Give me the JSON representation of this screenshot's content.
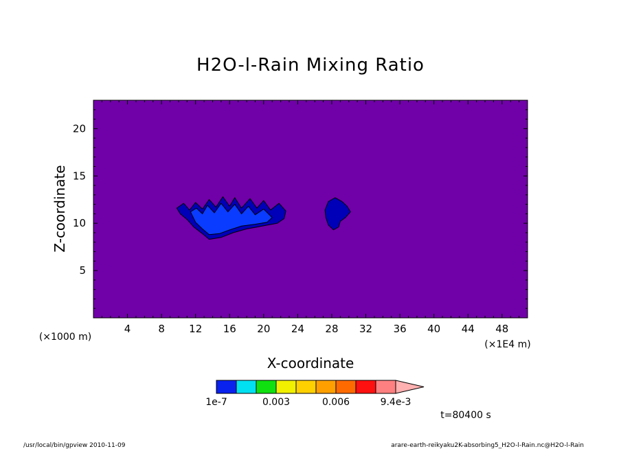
{
  "chart_data": {
    "type": "heatmap",
    "title": "H2O-l-Rain Mixing Ratio",
    "xlabel": "X-coordinate",
    "ylabel": "Z-coordinate",
    "x_unit_left": "(×1000 m)",
    "x_unit_right": "(×1E4 m)",
    "xlim": [
      0,
      51
    ],
    "ylim": [
      0,
      23
    ],
    "xticks": [
      4,
      8,
      12,
      16,
      20,
      24,
      28,
      32,
      36,
      40,
      44,
      48
    ],
    "yticks": [
      5,
      10,
      15,
      20
    ],
    "background_color": "#7000a8",
    "colorbar": {
      "colors": [
        "#0a22ee",
        "#00e0f0",
        "#10e010",
        "#f0f000",
        "#ffd000",
        "#ffa000",
        "#ff6a00",
        "#ff1010",
        "#ff8080",
        "#ffb0b0"
      ],
      "labels": [
        "1e-7",
        "0.003",
        "0.006",
        "9.4e-3"
      ],
      "label_positions": [
        0,
        3,
        6,
        9
      ]
    },
    "regions": [
      {
        "level": "low",
        "fill": "#0000b8",
        "points": [
          [
            9.8,
            11.6
          ],
          [
            10.6,
            12.1
          ],
          [
            11.3,
            11.4
          ],
          [
            12.0,
            12.2
          ],
          [
            12.8,
            11.5
          ],
          [
            13.6,
            12.5
          ],
          [
            14.4,
            11.7
          ],
          [
            15.2,
            12.8
          ],
          [
            16.0,
            11.8
          ],
          [
            16.6,
            12.7
          ],
          [
            17.4,
            11.6
          ],
          [
            18.4,
            12.6
          ],
          [
            19.2,
            11.6
          ],
          [
            20.0,
            12.4
          ],
          [
            20.8,
            11.4
          ],
          [
            21.8,
            12.1
          ],
          [
            22.6,
            11.3
          ],
          [
            22.4,
            10.5
          ],
          [
            21.6,
            10.0
          ],
          [
            20.4,
            9.8
          ],
          [
            19.2,
            9.6
          ],
          [
            18.0,
            9.4
          ],
          [
            16.4,
            9.0
          ],
          [
            15.0,
            8.5
          ],
          [
            13.6,
            8.3
          ],
          [
            12.8,
            8.9
          ],
          [
            11.8,
            9.6
          ],
          [
            11.0,
            10.4
          ],
          [
            10.2,
            11.0
          ]
        ]
      },
      {
        "level": "medium",
        "fill": "#0a3cff",
        "points": [
          [
            11.4,
            11.2
          ],
          [
            12.1,
            11.6
          ],
          [
            12.8,
            11.0
          ],
          [
            13.4,
            11.9
          ],
          [
            14.2,
            11.1
          ],
          [
            15.0,
            12.1
          ],
          [
            15.8,
            11.2
          ],
          [
            16.6,
            12.0
          ],
          [
            17.4,
            11.0
          ],
          [
            18.2,
            11.8
          ],
          [
            19.0,
            10.9
          ],
          [
            20.0,
            11.5
          ],
          [
            21.0,
            10.6
          ],
          [
            20.4,
            10.1
          ],
          [
            19.0,
            9.9
          ],
          [
            17.4,
            9.7
          ],
          [
            16.0,
            9.3
          ],
          [
            14.8,
            8.9
          ],
          [
            13.6,
            8.8
          ],
          [
            12.8,
            9.4
          ],
          [
            12.0,
            10.1
          ]
        ]
      },
      {
        "level": "low",
        "fill": "#0000b8",
        "points": [
          [
            27.6,
            12.3
          ],
          [
            28.4,
            12.7
          ],
          [
            29.2,
            12.3
          ],
          [
            29.8,
            11.8
          ],
          [
            30.2,
            11.2
          ],
          [
            29.6,
            10.6
          ],
          [
            29.0,
            10.2
          ],
          [
            28.8,
            9.6
          ],
          [
            28.2,
            9.3
          ],
          [
            27.6,
            9.8
          ],
          [
            27.3,
            10.6
          ],
          [
            27.2,
            11.4
          ]
        ]
      }
    ]
  },
  "time_label": "t=80400 s",
  "footer_left": "/usr/local/bin/gpview  2010-11-09",
  "footer_right": "arare-earth-reikyaku2K-absorbing5_H2O-l-Rain.nc@H2O-l-Rain"
}
